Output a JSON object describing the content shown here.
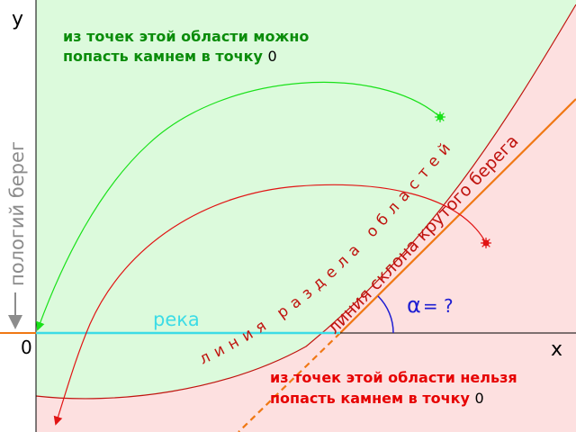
{
  "colors": {
    "region_reachable": "#dcfadc",
    "region_unreachable": "#fde0e0",
    "boundary": "#c0140f",
    "upper_trajectory": "#19e119",
    "lower_trajectory": "#e11414",
    "slope_line": "#f07814",
    "river": "#3cdce6",
    "gentle_bank": "#8c8c8c",
    "angle_arc": "#1e1ed2",
    "upper_text": "#0a8c0a",
    "lower_text": "#e60000",
    "axis": "#000000"
  },
  "axes": {
    "x_label": "x",
    "y_label": "y",
    "origin_label": "0"
  },
  "labels": {
    "upper_region_line1": "из точек этой области можно",
    "upper_region_line2_prefix": "попасть камнем в точку ",
    "upper_region_line2_point": "0",
    "lower_region_line1": "из точек этой области нельзя",
    "lower_region_line2_prefix": "попасть камнем в точку ",
    "lower_region_line2_point": "0",
    "boundary_line": "линия раздела областей",
    "slope_line": "линия склона крутого берега",
    "gentle_bank": "пологий берег",
    "river": "река",
    "angle_symbol": "α",
    "angle_question": "= ?"
  },
  "icons": {
    "upper_stone": "sun-icon",
    "lower_stone": "sun-icon",
    "gentle_bank_arrow": "arrow-down-icon"
  }
}
